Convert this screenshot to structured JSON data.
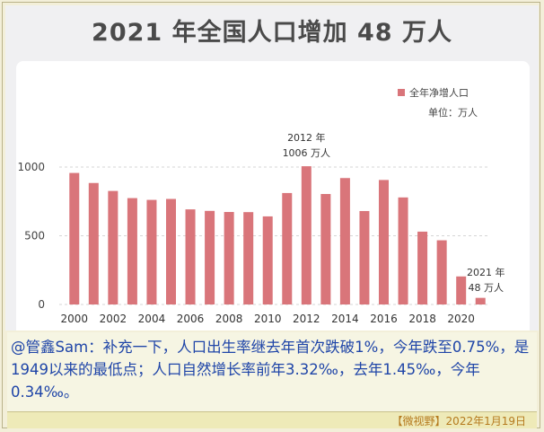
{
  "chart_data": {
    "type": "bar",
    "title": "2021 年全国人口增加 48 万人",
    "legend": {
      "label": "全年净增人口",
      "unit_label": "单位：万人",
      "placement": "top-right"
    },
    "categories": [
      "2000",
      "2001",
      "2002",
      "2003",
      "2004",
      "2005",
      "2006",
      "2007",
      "2008",
      "2009",
      "2010",
      "2011",
      "2012",
      "2013",
      "2014",
      "2015",
      "2016",
      "2017",
      "2018",
      "2019",
      "2020",
      "2021"
    ],
    "x_tick_labels": [
      "2000",
      "2002",
      "2004",
      "2006",
      "2008",
      "2010",
      "2012",
      "2014",
      "2016",
      "2018",
      "2020"
    ],
    "series": [
      {
        "name": "全年净增人口",
        "values": [
          957,
          884,
          826,
          774,
          761,
          768,
          692,
          681,
          673,
          672,
          641,
          811,
          1006,
          804,
          920,
          680,
          906,
          779,
          530,
          467,
          204,
          48
        ]
      }
    ],
    "y_ticks": [
      0,
      500,
      1000
    ],
    "ylim": [
      0,
      1100
    ],
    "grid": true,
    "color": "#d9757a",
    "annotations": [
      {
        "line1": "2012 年",
        "line2": "1006 万人",
        "category": "2012"
      },
      {
        "line1": "2021 年",
        "line2": "48 万人",
        "category": "2021"
      }
    ]
  },
  "caption": "@管鑫Sam：补充一下，人口出生率继去年首次跌破1%，今年跌至0.75%，是1949以来的最低点；人口自然增长率前年3.32‰，去年1.45‰，今年0.34‰。",
  "footer": "【微视野】2022年1月19日"
}
